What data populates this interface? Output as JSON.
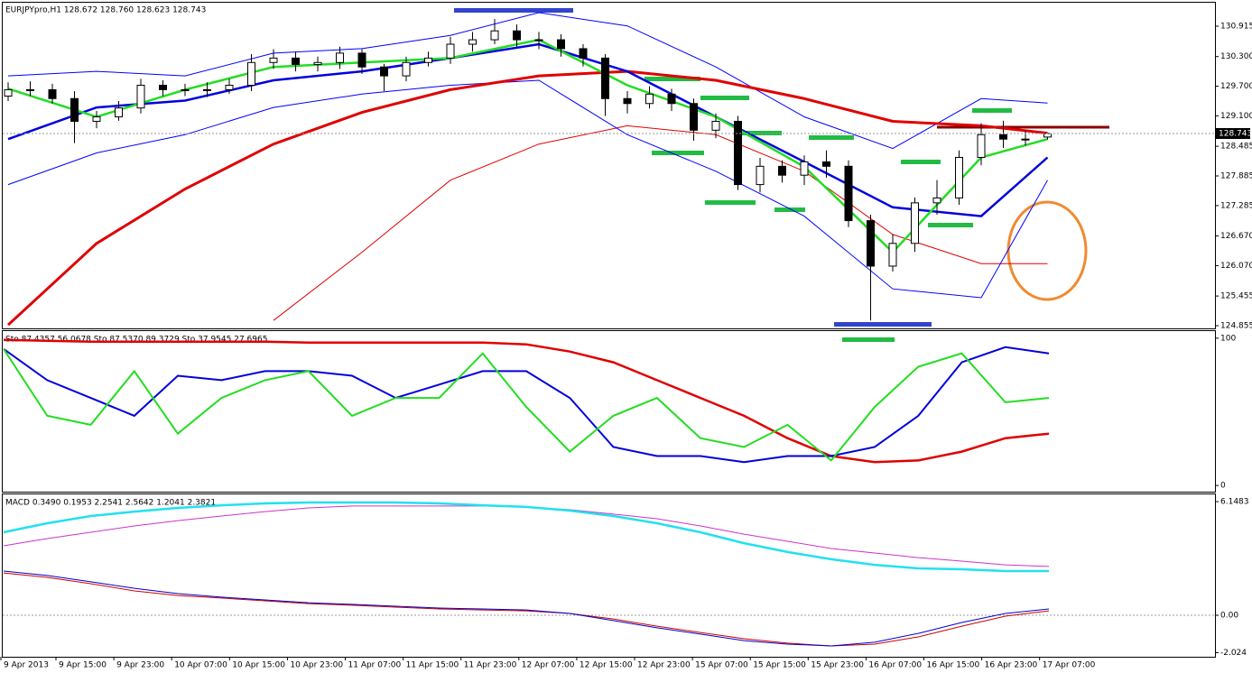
{
  "x_axis": {
    "labels": [
      "9 Apr 2013",
      "9 Apr 15:00",
      "9 Apr 23:00",
      "10 Apr 07:00",
      "10 Apr 15:00",
      "10 Apr 23:00",
      "11 Apr 07:00",
      "11 Apr 15:00",
      "11 Apr 23:00",
      "12 Apr 07:00",
      "12 Apr 15:00",
      "12 Apr 23:00",
      "15 Apr 07:00",
      "15 Apr 15:00",
      "15 Apr 23:00",
      "16 Apr 07:00",
      "16 Apr 15:00",
      "16 Apr 23:00",
      "17 Apr 07:00"
    ]
  },
  "chart_data": [
    {
      "type": "candlestick",
      "title": "EURJPYpro,H1  128.672 128.760 128.623 128.743",
      "open": [
        129.5,
        129.63,
        129.63,
        129.45,
        128.99,
        129.08,
        129.26,
        129.72,
        129.63,
        129.63,
        129.63,
        129.72,
        130.18,
        130.27,
        130.14,
        130.18,
        130.37,
        130.09,
        129.91,
        130.18,
        130.27,
        130.55,
        130.64,
        130.82,
        130.64,
        130.64,
        130.46,
        130.27,
        129.45,
        129.35,
        129.54,
        129.35,
        128.81,
        128.99,
        127.71,
        128.08,
        127.9,
        128.17,
        128.08,
        126.98,
        126.06,
        126.52,
        127.34,
        127.44,
        128.26,
        128.72,
        128.63,
        128.672
      ],
      "high": [
        129.78,
        129.8,
        129.75,
        129.6,
        129.2,
        129.4,
        129.85,
        129.82,
        129.75,
        129.78,
        129.85,
        130.35,
        130.45,
        130.4,
        130.3,
        130.5,
        130.45,
        130.15,
        130.3,
        130.4,
        130.7,
        130.8,
        131.06,
        130.95,
        130.8,
        130.75,
        130.55,
        130.35,
        129.6,
        129.7,
        129.65,
        129.45,
        129.15,
        129.1,
        128.25,
        128.2,
        128.3,
        128.4,
        128.2,
        127.1,
        126.7,
        127.45,
        127.8,
        128.4,
        128.95,
        129.0,
        128.8,
        128.76
      ],
      "low": [
        129.4,
        129.5,
        129.35,
        128.55,
        128.85,
        129.0,
        129.15,
        129.5,
        129.5,
        129.48,
        129.55,
        129.6,
        130.05,
        130.0,
        130.0,
        130.05,
        129.95,
        129.6,
        129.8,
        130.1,
        130.15,
        130.4,
        130.55,
        130.5,
        130.45,
        130.3,
        130.1,
        129.1,
        129.15,
        129.25,
        129.2,
        128.6,
        128.65,
        127.6,
        127.55,
        127.75,
        127.7,
        127.85,
        126.85,
        124.96,
        125.95,
        126.35,
        127.1,
        127.3,
        128.1,
        128.45,
        128.5,
        128.623
      ],
      "close": [
        129.63,
        129.63,
        129.45,
        128.99,
        129.08,
        129.26,
        129.72,
        129.63,
        129.63,
        129.63,
        129.72,
        130.18,
        130.27,
        130.14,
        130.18,
        130.37,
        130.09,
        129.91,
        130.18,
        130.27,
        130.55,
        130.64,
        130.82,
        130.64,
        130.64,
        130.46,
        130.27,
        129.45,
        129.35,
        129.54,
        129.35,
        128.81,
        128.99,
        127.71,
        128.08,
        127.9,
        128.17,
        128.08,
        126.98,
        126.06,
        126.52,
        127.34,
        127.44,
        128.26,
        128.72,
        128.63,
        128.63,
        128.743
      ],
      "series": [
        {
          "color": "#e00000",
          "width": 1,
          "values": [
            null,
            null,
            null,
            124.96,
            126.34,
            127.8,
            128.53,
            128.9,
            128.72,
            127.98,
            126.7,
            126.11,
            126.11
          ]
        },
        {
          "color": "#0000ff",
          "width": 1,
          "values": [
            129.91,
            130.0,
            129.91,
            130.37,
            130.46,
            130.73,
            131.19,
            130.92,
            130.09,
            129.08,
            128.44,
            129.45,
            129.36
          ]
        },
        {
          "color": "#0000ff",
          "width": 1,
          "values": [
            127.71,
            128.35,
            128.72,
            129.27,
            129.54,
            129.72,
            129.82,
            128.72,
            127.98,
            127.07,
            125.6,
            125.42,
            127.8
          ]
        },
        {
          "color": "#e00000",
          "width": 3,
          "values": [
            124.87,
            126.52,
            127.62,
            128.53,
            129.17,
            129.63,
            129.91,
            130.0,
            129.82,
            129.45,
            128.99,
            128.9,
            128.75
          ]
        },
        {
          "color": "#0000dd",
          "width": 2.5,
          "values": [
            128.63,
            129.27,
            129.41,
            129.82,
            130.0,
            130.27,
            130.55,
            130.0,
            129.08,
            128.17,
            127.25,
            127.07,
            128.26
          ]
        },
        {
          "color": "#22dd22",
          "width": 2.5,
          "values": [
            129.65,
            129.08,
            129.63,
            130.09,
            130.18,
            130.27,
            130.64,
            129.72,
            129.08,
            128.07,
            126.34,
            128.26,
            128.63
          ]
        }
      ],
      "ylim": [
        124.8,
        131.39
      ],
      "yticks": [
        {
          "value": 124.855,
          "label": "124.855"
        },
        {
          "value": 125.455,
          "label": "125.455"
        },
        {
          "value": 126.07,
          "label": "126.070"
        },
        {
          "value": 126.67,
          "label": "126.670"
        },
        {
          "value": 127.285,
          "label": "127.285"
        },
        {
          "value": 127.885,
          "label": "127.885"
        },
        {
          "value": 128.485,
          "label": "128.485"
        },
        {
          "value": 129.1,
          "label": "129.100"
        },
        {
          "value": 129.7,
          "label": "129.700"
        },
        {
          "value": 130.3,
          "label": "130.300"
        },
        {
          "value": 130.915,
          "label": "130.915"
        }
      ]
    },
    {
      "type": "line",
      "title": "Sto 87.4357 56.0678  Sto 87.5370 89.3729  Sto 37.9545 27.6965",
      "series": [
        {
          "color": "#e00000",
          "width": 2.5,
          "values": [
            98.8,
            98.2,
            97.6,
            97.6,
            97.6,
            97.6,
            97.6,
            97.0,
            97.0,
            97.0,
            97.0,
            97.0,
            95.8,
            90.9,
            83.6,
            71.5,
            59.4,
            47.3,
            32.1,
            20.0,
            15.8,
            17.0,
            23.0,
            32.1,
            35.2
          ]
        },
        {
          "color": "#0000dd",
          "width": 2,
          "values": [
            92.7,
            71.5,
            59.4,
            47.3,
            74.5,
            71.5,
            77.6,
            77.6,
            74.5,
            59.4,
            68.5,
            77.6,
            77.6,
            59.4,
            26.1,
            20.0,
            20.0,
            15.8,
            20.0,
            20.0,
            26.1,
            47.3,
            83.6,
            93.9,
            89.7
          ]
        },
        {
          "color": "#22dd22",
          "width": 2,
          "values": [
            92.7,
            47.3,
            41.2,
            77.6,
            35.2,
            59.4,
            71.5,
            77.6,
            47.3,
            59.4,
            59.4,
            89.7,
            53.3,
            23.0,
            47.3,
            59.4,
            32.1,
            26.1,
            41.2,
            17.0,
            53.3,
            80.6,
            89.7,
            56.4,
            59.4
          ]
        }
      ],
      "ylim": [
        -4.2,
        104.8
      ],
      "yticks": [
        0,
        100
      ]
    },
    {
      "type": "line",
      "title": "MACD 0.3490 0.1953 2.2541 2.5642 1.2041 2.3821",
      "series": [
        {
          "color": "#cc33cc",
          "width": 1,
          "values": [
            3.76,
            4.15,
            4.49,
            4.83,
            5.12,
            5.37,
            5.61,
            5.81,
            5.91,
            5.91,
            5.91,
            5.91,
            5.86,
            5.71,
            5.47,
            5.22,
            4.83,
            4.39,
            4.0,
            3.61,
            3.37,
            3.12,
            2.93,
            2.73,
            2.64
          ]
        },
        {
          "color": "#22e0f0",
          "width": 2.5,
          "values": [
            4.49,
            4.98,
            5.37,
            5.61,
            5.81,
            5.95,
            6.05,
            6.1,
            6.1,
            6.1,
            6.05,
            5.95,
            5.86,
            5.66,
            5.37,
            4.98,
            4.49,
            3.9,
            3.42,
            3.03,
            2.73,
            2.54,
            2.49,
            2.39,
            2.39
          ]
        },
        {
          "color": "#d00000",
          "width": 1,
          "values": [
            2.29,
            2.05,
            1.71,
            1.32,
            1.07,
            0.93,
            0.78,
            0.63,
            0.54,
            0.44,
            0.34,
            0.29,
            0.24,
            0.1,
            -0.2,
            -0.59,
            -0.93,
            -1.27,
            -1.51,
            -1.66,
            -1.56,
            -1.17,
            -0.59,
            -0.05,
            0.24
          ]
        },
        {
          "color": "#0000cc",
          "width": 1,
          "values": [
            2.39,
            2.15,
            1.81,
            1.46,
            1.17,
            0.98,
            0.83,
            0.68,
            0.59,
            0.49,
            0.39,
            0.34,
            0.29,
            0.1,
            -0.29,
            -0.68,
            -1.02,
            -1.37,
            -1.56,
            -1.66,
            -1.46,
            -0.98,
            -0.39,
            0.1,
            0.34
          ]
        }
      ],
      "ylim": [
        -2.245,
        6.54
      ],
      "yticks": [
        {
          "value": 6.1483,
          "label": "6.1483"
        },
        {
          "value": 0,
          "label": "0.00"
        },
        {
          "value": -2.024,
          "label": "-2.024"
        }
      ]
    }
  ]
}
